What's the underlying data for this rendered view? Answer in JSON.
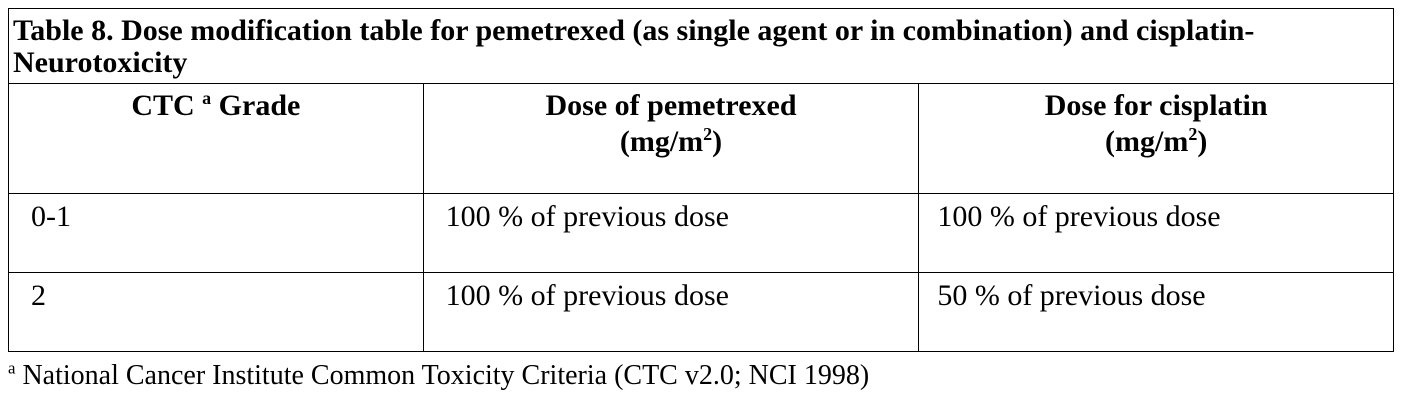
{
  "table": {
    "title": "Table 8.  Dose modification table for pemetrexed (as single agent or in combination) and cisplatin-Neurotoxicity",
    "headers": [
      {
        "text": "CTC ",
        "sup": "a",
        "after": " Grade",
        "unit": ""
      },
      {
        "text": "Dose of pemetrexed",
        "unit": "(mg/m",
        "unit_sup": "2",
        "unit_end": ")"
      },
      {
        "text": "Dose for cisplatin",
        "unit": "(mg/m",
        "unit_sup": "2",
        "unit_end": ")"
      }
    ],
    "rows": [
      [
        "0-1",
        "100 % of previous dose",
        "100 % of previous dose"
      ],
      [
        "2",
        "100 % of previous dose",
        "50 % of previous dose"
      ]
    ]
  },
  "footnote": {
    "mark": "a",
    "text": " National Cancer Institute Common Toxicity Criteria (CTC v2.0; NCI 1998)"
  }
}
